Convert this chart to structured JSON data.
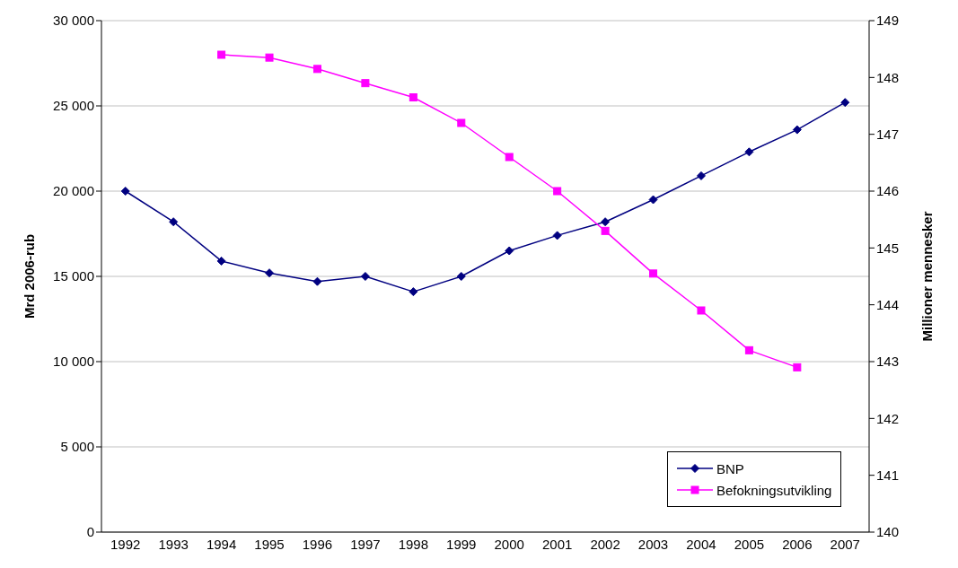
{
  "chart_data": {
    "type": "line",
    "ylabel": "Mrd 2006-rub",
    "y2label": "Millioner mennesker",
    "categories": [
      "1992",
      "1993",
      "1994",
      "1995",
      "1996",
      "1997",
      "1998",
      "1999",
      "2000",
      "2001",
      "2002",
      "2003",
      "2004",
      "2005",
      "2006",
      "2007"
    ],
    "series": [
      {
        "name": "BNP",
        "color": "#000080",
        "marker": "diamond",
        "values": [
          20000,
          18200,
          15900,
          15200,
          14700,
          15000,
          14100,
          15000,
          16500,
          17400,
          18200,
          19500,
          20900,
          22300,
          23600,
          25200
        ]
      },
      {
        "name": "Befokningsutvikling",
        "color": "#ff00ff",
        "marker": "square",
        "axis": "y2",
        "values": [
          null,
          null,
          148.4,
          148.35,
          148.15,
          147.9,
          147.65,
          147.2,
          146.6,
          146.0,
          145.3,
          144.55,
          143.9,
          143.2,
          142.9,
          null
        ]
      }
    ],
    "ylim": [
      0,
      30000
    ],
    "yticks": [
      {
        "value": 0,
        "label": "0"
      },
      {
        "value": 5000,
        "label": "5 000"
      },
      {
        "value": 10000,
        "label": "10 000"
      },
      {
        "value": 15000,
        "label": "15 000"
      },
      {
        "value": 20000,
        "label": "20 000"
      },
      {
        "value": 25000,
        "label": "25 000"
      },
      {
        "value": 30000,
        "label": "30 000"
      }
    ],
    "y2lim": [
      140,
      149
    ],
    "y2ticks": [
      140,
      141,
      142,
      143,
      144,
      145,
      146,
      147,
      148,
      149
    ],
    "grid": "y",
    "legend": "bottom right",
    "line_style": "solid"
  }
}
